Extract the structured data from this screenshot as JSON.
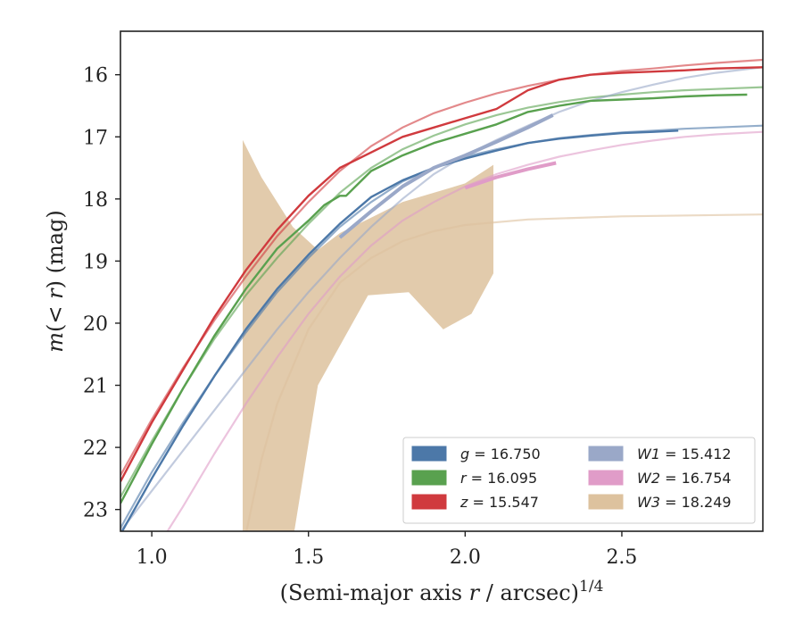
{
  "chart_data": {
    "type": "line",
    "xlabel_main": "(Semi-major axis ",
    "xlabel_var": "r",
    "xlabel_rest": " / arcsec)",
    "xlabel_sup": "1/4",
    "ylabel": "m(< r) (mag)",
    "xlim": [
      0.9,
      2.95
    ],
    "ylim": [
      23.35,
      15.3
    ],
    "y_inverted": true,
    "xticks": [
      "1.0",
      "1.5",
      "2.0",
      "2.5"
    ],
    "xtick_values": [
      1.0,
      1.5,
      2.0,
      2.5
    ],
    "yticks": [
      "16",
      "17",
      "18",
      "19",
      "20",
      "21",
      "22",
      "23"
    ],
    "ytick_values": [
      16,
      17,
      18,
      19,
      20,
      21,
      22,
      23
    ],
    "legend": [
      {
        "var": "g",
        "text": " = 16.750",
        "color": "#4c78a8"
      },
      {
        "var": "r",
        "text": " = 16.095",
        "color": "#59a14f"
      },
      {
        "var": "z",
        "text": " = 15.547",
        "color": "#d03a3e"
      },
      {
        "var": "W1",
        "text": " = 15.412",
        "color": "#9aa8c8"
      },
      {
        "var": "W2",
        "text": " = 16.754",
        "color": "#e09cc8"
      },
      {
        "var": "W3",
        "text": " = 18.249",
        "color": "#ddc29e"
      }
    ],
    "legend_position": "lower-right",
    "series": [
      {
        "name": "g",
        "color": "#4c78a8",
        "data": [
          [
            0.9,
            23.4
          ],
          [
            1.0,
            22.5
          ],
          [
            1.1,
            21.65
          ],
          [
            1.2,
            20.85
          ],
          [
            1.3,
            20.1
          ],
          [
            1.4,
            19.45
          ],
          [
            1.5,
            18.9
          ],
          [
            1.6,
            18.4
          ],
          [
            1.7,
            17.97
          ],
          [
            1.8,
            17.7
          ],
          [
            1.9,
            17.5
          ],
          [
            2.0,
            17.35
          ],
          [
            2.1,
            17.22
          ],
          [
            2.2,
            17.1
          ],
          [
            2.3,
            17.03
          ],
          [
            2.4,
            16.98
          ],
          [
            2.5,
            16.94
          ],
          [
            2.6,
            16.92
          ],
          [
            2.68,
            16.9
          ]
        ],
        "model": [
          [
            0.9,
            23.3
          ],
          [
            1.0,
            22.4
          ],
          [
            1.1,
            21.6
          ],
          [
            1.2,
            20.85
          ],
          [
            1.3,
            20.15
          ],
          [
            1.4,
            19.5
          ],
          [
            1.5,
            18.95
          ],
          [
            1.6,
            18.45
          ],
          [
            1.7,
            18.05
          ],
          [
            1.8,
            17.72
          ],
          [
            1.9,
            17.5
          ],
          [
            2.0,
            17.32
          ],
          [
            2.1,
            17.2
          ],
          [
            2.2,
            17.1
          ],
          [
            2.3,
            17.02
          ],
          [
            2.4,
            16.97
          ],
          [
            2.5,
            16.93
          ],
          [
            2.6,
            16.9
          ],
          [
            2.7,
            16.87
          ],
          [
            2.8,
            16.85
          ],
          [
            2.95,
            16.82
          ]
        ]
      },
      {
        "name": "r",
        "color": "#59a14f",
        "data": [
          [
            0.9,
            22.9
          ],
          [
            1.0,
            21.95
          ],
          [
            1.1,
            21.05
          ],
          [
            1.2,
            20.2
          ],
          [
            1.3,
            19.45
          ],
          [
            1.4,
            18.8
          ],
          [
            1.5,
            18.35
          ],
          [
            1.55,
            18.1
          ],
          [
            1.6,
            17.95
          ],
          [
            1.62,
            17.95
          ],
          [
            1.65,
            17.8
          ],
          [
            1.7,
            17.55
          ],
          [
            1.8,
            17.3
          ],
          [
            1.9,
            17.1
          ],
          [
            2.0,
            16.95
          ],
          [
            2.1,
            16.8
          ],
          [
            2.2,
            16.6
          ],
          [
            2.3,
            16.5
          ],
          [
            2.4,
            16.42
          ],
          [
            2.5,
            16.4
          ],
          [
            2.6,
            16.38
          ],
          [
            2.7,
            16.35
          ],
          [
            2.8,
            16.33
          ],
          [
            2.9,
            16.32
          ]
        ],
        "model": [
          [
            0.9,
            22.8
          ],
          [
            1.0,
            21.9
          ],
          [
            1.1,
            21.05
          ],
          [
            1.2,
            20.25
          ],
          [
            1.3,
            19.55
          ],
          [
            1.4,
            18.95
          ],
          [
            1.5,
            18.4
          ],
          [
            1.6,
            17.9
          ],
          [
            1.7,
            17.5
          ],
          [
            1.8,
            17.2
          ],
          [
            1.9,
            16.98
          ],
          [
            2.0,
            16.8
          ],
          [
            2.1,
            16.65
          ],
          [
            2.2,
            16.53
          ],
          [
            2.3,
            16.44
          ],
          [
            2.4,
            16.37
          ],
          [
            2.5,
            16.32
          ],
          [
            2.6,
            16.28
          ],
          [
            2.7,
            16.25
          ],
          [
            2.8,
            16.23
          ],
          [
            2.95,
            16.2
          ]
        ]
      },
      {
        "name": "z",
        "color": "#d03a3e",
        "data": [
          [
            0.9,
            22.55
          ],
          [
            1.0,
            21.6
          ],
          [
            1.1,
            20.75
          ],
          [
            1.2,
            19.9
          ],
          [
            1.3,
            19.15
          ],
          [
            1.4,
            18.5
          ],
          [
            1.5,
            17.95
          ],
          [
            1.6,
            17.5
          ],
          [
            1.7,
            17.25
          ],
          [
            1.8,
            17.0
          ],
          [
            1.9,
            16.85
          ],
          [
            2.0,
            16.7
          ],
          [
            2.1,
            16.55
          ],
          [
            2.2,
            16.25
          ],
          [
            2.3,
            16.08
          ],
          [
            2.4,
            16.0
          ],
          [
            2.5,
            15.97
          ],
          [
            2.6,
            15.95
          ],
          [
            2.7,
            15.93
          ],
          [
            2.8,
            15.9
          ],
          [
            2.95,
            15.88
          ]
        ],
        "model": [
          [
            0.9,
            22.45
          ],
          [
            1.0,
            21.55
          ],
          [
            1.1,
            20.72
          ],
          [
            1.2,
            19.95
          ],
          [
            1.3,
            19.25
          ],
          [
            1.4,
            18.6
          ],
          [
            1.5,
            18.05
          ],
          [
            1.6,
            17.55
          ],
          [
            1.7,
            17.15
          ],
          [
            1.8,
            16.85
          ],
          [
            1.9,
            16.62
          ],
          [
            2.0,
            16.45
          ],
          [
            2.1,
            16.3
          ],
          [
            2.2,
            16.18
          ],
          [
            2.3,
            16.08
          ],
          [
            2.4,
            16.0
          ],
          [
            2.5,
            15.94
          ],
          [
            2.6,
            15.9
          ],
          [
            2.7,
            15.85
          ],
          [
            2.8,
            15.81
          ],
          [
            2.95,
            15.76
          ]
        ]
      },
      {
        "name": "W1",
        "color": "#9aa8c8",
        "data": [
          [
            1.6,
            18.62
          ],
          [
            1.7,
            18.2
          ],
          [
            1.8,
            17.8
          ],
          [
            1.9,
            17.5
          ],
          [
            2.0,
            17.3
          ],
          [
            2.1,
            17.08
          ],
          [
            2.2,
            16.85
          ],
          [
            2.28,
            16.65
          ]
        ],
        "model": [
          [
            0.9,
            23.35
          ],
          [
            1.0,
            22.7
          ],
          [
            1.1,
            22.05
          ],
          [
            1.2,
            21.4
          ],
          [
            1.3,
            20.75
          ],
          [
            1.4,
            20.1
          ],
          [
            1.5,
            19.5
          ],
          [
            1.6,
            18.95
          ],
          [
            1.7,
            18.45
          ],
          [
            1.8,
            18.0
          ],
          [
            1.9,
            17.6
          ],
          [
            2.0,
            17.3
          ],
          [
            2.1,
            17.05
          ],
          [
            2.2,
            16.82
          ],
          [
            2.3,
            16.6
          ],
          [
            2.4,
            16.42
          ],
          [
            2.5,
            16.28
          ],
          [
            2.6,
            16.16
          ],
          [
            2.7,
            16.05
          ],
          [
            2.8,
            15.97
          ],
          [
            2.95,
            15.88
          ]
        ]
      },
      {
        "name": "W2",
        "color": "#e09cc8",
        "data": [
          [
            2.0,
            17.82
          ],
          [
            2.1,
            17.65
          ],
          [
            2.2,
            17.52
          ],
          [
            2.29,
            17.42
          ]
        ],
        "model": [
          [
            1.05,
            23.35
          ],
          [
            1.1,
            22.95
          ],
          [
            1.2,
            22.1
          ],
          [
            1.3,
            21.3
          ],
          [
            1.4,
            20.55
          ],
          [
            1.5,
            19.85
          ],
          [
            1.6,
            19.25
          ],
          [
            1.7,
            18.75
          ],
          [
            1.8,
            18.35
          ],
          [
            1.9,
            18.05
          ],
          [
            2.0,
            17.8
          ],
          [
            2.1,
            17.6
          ],
          [
            2.2,
            17.45
          ],
          [
            2.3,
            17.32
          ],
          [
            2.4,
            17.22
          ],
          [
            2.5,
            17.13
          ],
          [
            2.6,
            17.06
          ],
          [
            2.7,
            17.0
          ],
          [
            2.8,
            16.96
          ],
          [
            2.95,
            16.92
          ]
        ]
      },
      {
        "name": "W3",
        "color": "#ddc29e",
        "band_upper": [
          [
            1.29,
            17.05
          ],
          [
            1.35,
            17.65
          ],
          [
            1.45,
            18.45
          ],
          [
            1.53,
            18.82
          ],
          [
            1.6,
            18.55
          ],
          [
            1.7,
            18.3
          ],
          [
            1.8,
            18.05
          ],
          [
            1.9,
            17.9
          ],
          [
            2.0,
            17.75
          ],
          [
            2.09,
            17.45
          ]
        ],
        "band_lower": [
          [
            1.29,
            23.5
          ],
          [
            1.45,
            23.5
          ],
          [
            1.53,
            21.0
          ],
          [
            1.69,
            19.55
          ],
          [
            1.82,
            19.5
          ],
          [
            1.93,
            20.1
          ],
          [
            2.02,
            19.85
          ],
          [
            2.09,
            19.2
          ]
        ],
        "model": [
          [
            1.3,
            23.4
          ],
          [
            1.35,
            22.2
          ],
          [
            1.4,
            21.3
          ],
          [
            1.5,
            20.1
          ],
          [
            1.6,
            19.35
          ],
          [
            1.7,
            18.95
          ],
          [
            1.8,
            18.68
          ],
          [
            1.9,
            18.52
          ],
          [
            2.0,
            18.42
          ],
          [
            2.2,
            18.33
          ],
          [
            2.5,
            18.28
          ],
          [
            2.95,
            18.25
          ]
        ]
      }
    ]
  }
}
